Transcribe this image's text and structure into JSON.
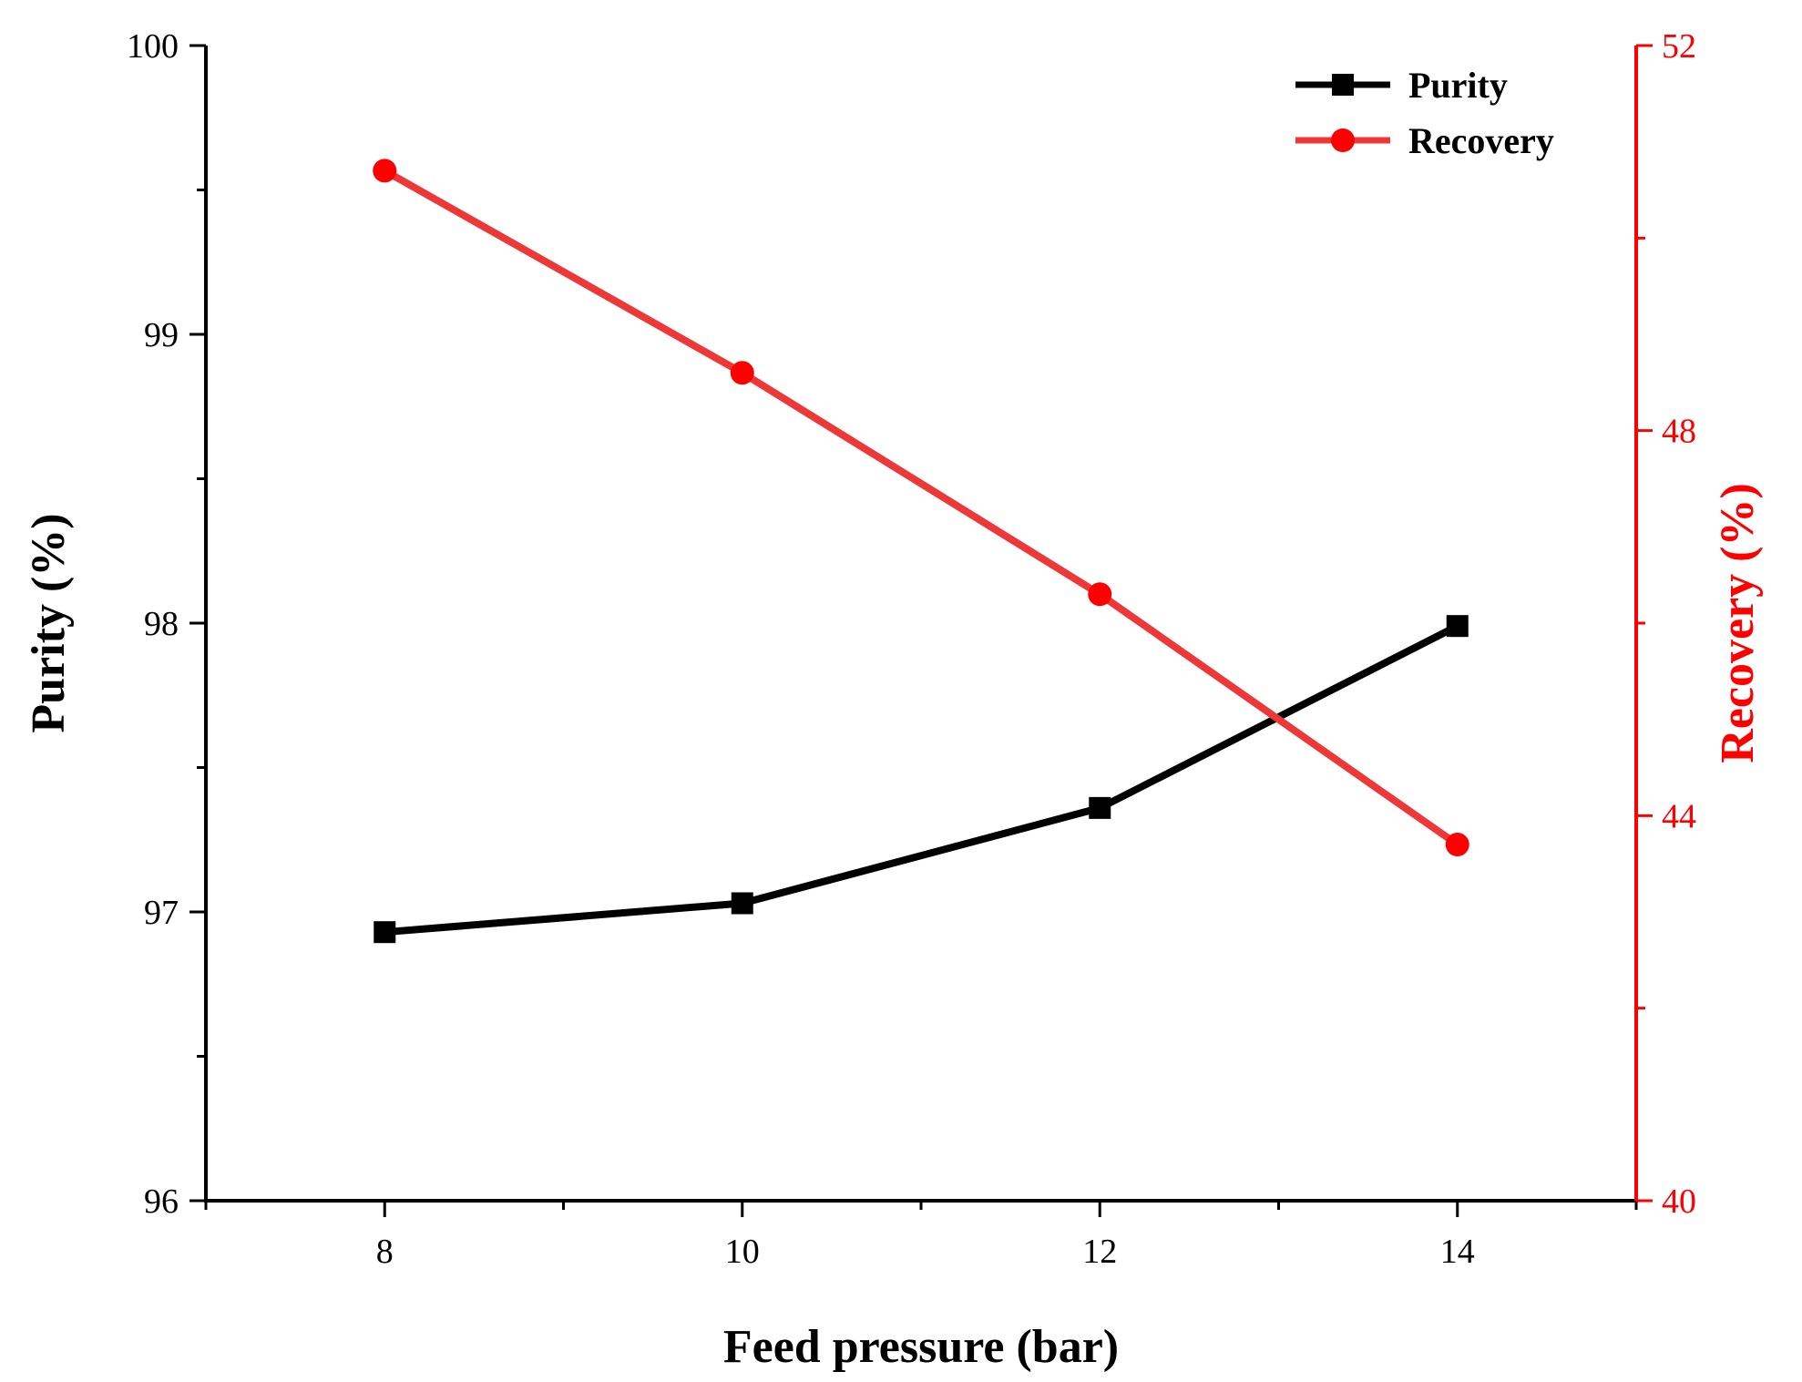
{
  "chart_data": {
    "type": "line",
    "title": "",
    "xlabel": "Feed pressure (bar)",
    "ylabel_left": "Purity (%)",
    "ylabel_right": "Recovery (%)",
    "x": [
      8,
      10,
      12,
      14
    ],
    "xlim": [
      7,
      15
    ],
    "x_ticks": [
      "8",
      "10",
      "12",
      "14"
    ],
    "ylim_left": [
      96,
      100
    ],
    "y_ticks_left": [
      "96",
      "97",
      "98",
      "99",
      "100"
    ],
    "ylim_right": [
      40,
      52
    ],
    "y_ticks_right": [
      "40",
      "44",
      "48",
      "52"
    ],
    "grid": false,
    "legend_position": "top-right",
    "series": [
      {
        "name": "Purity",
        "axis": "left",
        "marker": "square",
        "color": "#000000",
        "values": [
          96.93,
          97.03,
          97.36,
          97.99
        ]
      },
      {
        "name": "Recovery",
        "axis": "right",
        "marker": "circle",
        "color": "#ff0000",
        "line_color": "#ee3838",
        "values": [
          50.7,
          48.6,
          46.3,
          43.7
        ]
      }
    ]
  }
}
